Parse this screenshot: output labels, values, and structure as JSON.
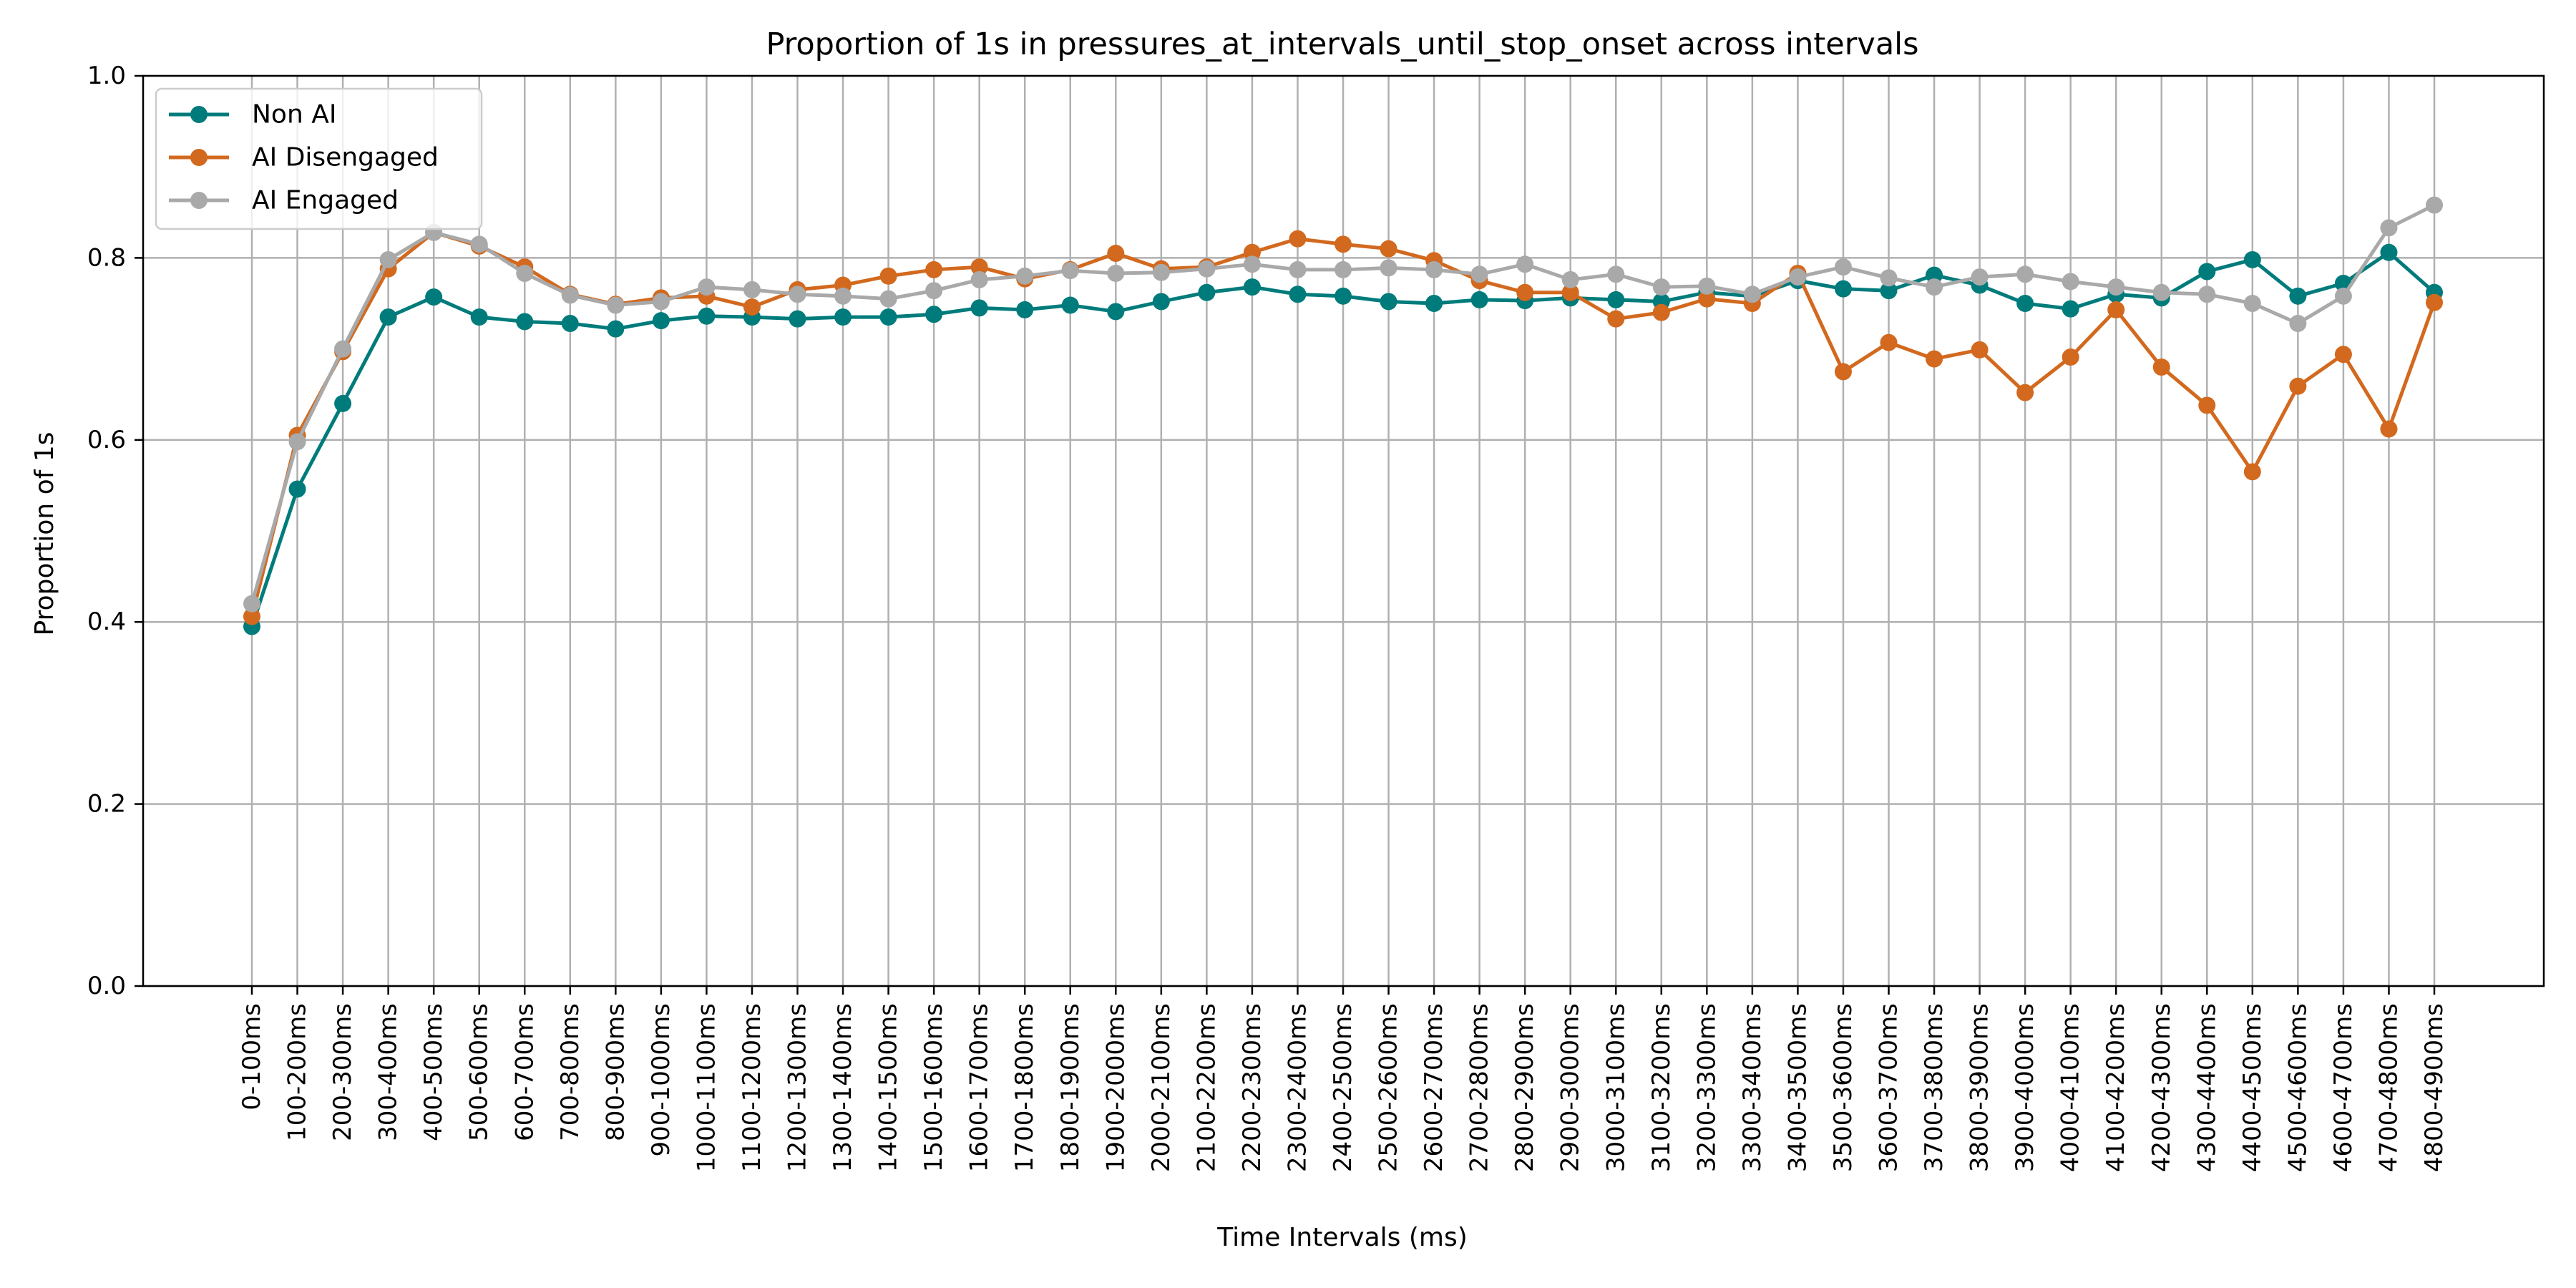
{
  "chart_data": {
    "type": "line",
    "title": "Proportion of 1s in pressures_at_intervals_until_stop_onset across intervals",
    "xlabel": "Time Intervals (ms)",
    "ylabel": "Proportion of 1s",
    "ylim": [
      0.0,
      1.0
    ],
    "yticks": [
      "0.0",
      "0.2",
      "0.4",
      "0.6",
      "0.8",
      "1.0"
    ],
    "grid": true,
    "legend_position": "top-left",
    "categories": [
      "0-100ms",
      "100-200ms",
      "200-300ms",
      "300-400ms",
      "400-500ms",
      "500-600ms",
      "600-700ms",
      "700-800ms",
      "800-900ms",
      "900-1000ms",
      "1000-1100ms",
      "1100-1200ms",
      "1200-1300ms",
      "1300-1400ms",
      "1400-1500ms",
      "1500-1600ms",
      "1600-1700ms",
      "1700-1800ms",
      "1800-1900ms",
      "1900-2000ms",
      "2000-2100ms",
      "2100-2200ms",
      "2200-2300ms",
      "2300-2400ms",
      "2400-2500ms",
      "2500-2600ms",
      "2600-2700ms",
      "2700-2800ms",
      "2800-2900ms",
      "2900-3000ms",
      "3000-3100ms",
      "3100-3200ms",
      "3200-3300ms",
      "3300-3400ms",
      "3400-3500ms",
      "3500-3600ms",
      "3600-3700ms",
      "3700-3800ms",
      "3800-3900ms",
      "3900-4000ms",
      "4000-4100ms",
      "4100-4200ms",
      "4200-4300ms",
      "4300-4400ms",
      "4400-4500ms",
      "4500-4600ms",
      "4600-4700ms",
      "4700-4800ms",
      "4800-4900ms"
    ],
    "series": [
      {
        "name": "Non AI",
        "color": "#007b7b",
        "values": [
          0.395,
          0.546,
          0.64,
          0.735,
          0.757,
          0.735,
          0.73,
          0.728,
          0.722,
          0.731,
          0.736,
          0.735,
          0.733,
          0.735,
          0.735,
          0.738,
          0.745,
          0.743,
          0.748,
          0.741,
          0.752,
          0.762,
          0.768,
          0.76,
          0.758,
          0.752,
          0.75,
          0.754,
          0.753,
          0.756,
          0.754,
          0.752,
          0.762,
          0.758,
          0.775,
          0.766,
          0.764,
          0.781,
          0.77,
          0.75,
          0.744,
          0.76,
          0.756,
          0.785,
          0.798,
          0.758,
          0.772,
          0.806,
          0.762
        ]
      },
      {
        "name": "AI Disengaged",
        "color": "#d2691e",
        "values": [
          0.406,
          0.605,
          0.697,
          0.788,
          0.828,
          0.813,
          0.79,
          0.76,
          0.749,
          0.756,
          0.758,
          0.746,
          0.765,
          0.77,
          0.78,
          0.787,
          0.79,
          0.777,
          0.787,
          0.805,
          0.788,
          0.79,
          0.806,
          0.821,
          0.815,
          0.81,
          0.797,
          0.775,
          0.762,
          0.762,
          0.733,
          0.74,
          0.755,
          0.75,
          0.783,
          0.675,
          0.707,
          0.689,
          0.699,
          0.652,
          0.691,
          0.743,
          0.68,
          0.638,
          0.565,
          0.659,
          0.694,
          0.612,
          0.751
        ]
      },
      {
        "name": "AI Engaged",
        "color": "#a9a9a9",
        "values": [
          0.42,
          0.598,
          0.7,
          0.798,
          0.828,
          0.815,
          0.783,
          0.759,
          0.748,
          0.752,
          0.768,
          0.765,
          0.76,
          0.758,
          0.755,
          0.764,
          0.776,
          0.78,
          0.786,
          0.783,
          0.784,
          0.788,
          0.793,
          0.787,
          0.787,
          0.789,
          0.787,
          0.782,
          0.793,
          0.776,
          0.782,
          0.768,
          0.769,
          0.76,
          0.779,
          0.79,
          0.778,
          0.768,
          0.779,
          0.782,
          0.774,
          0.768,
          0.762,
          0.76,
          0.75,
          0.728,
          0.758,
          0.833,
          0.858
        ]
      }
    ]
  }
}
